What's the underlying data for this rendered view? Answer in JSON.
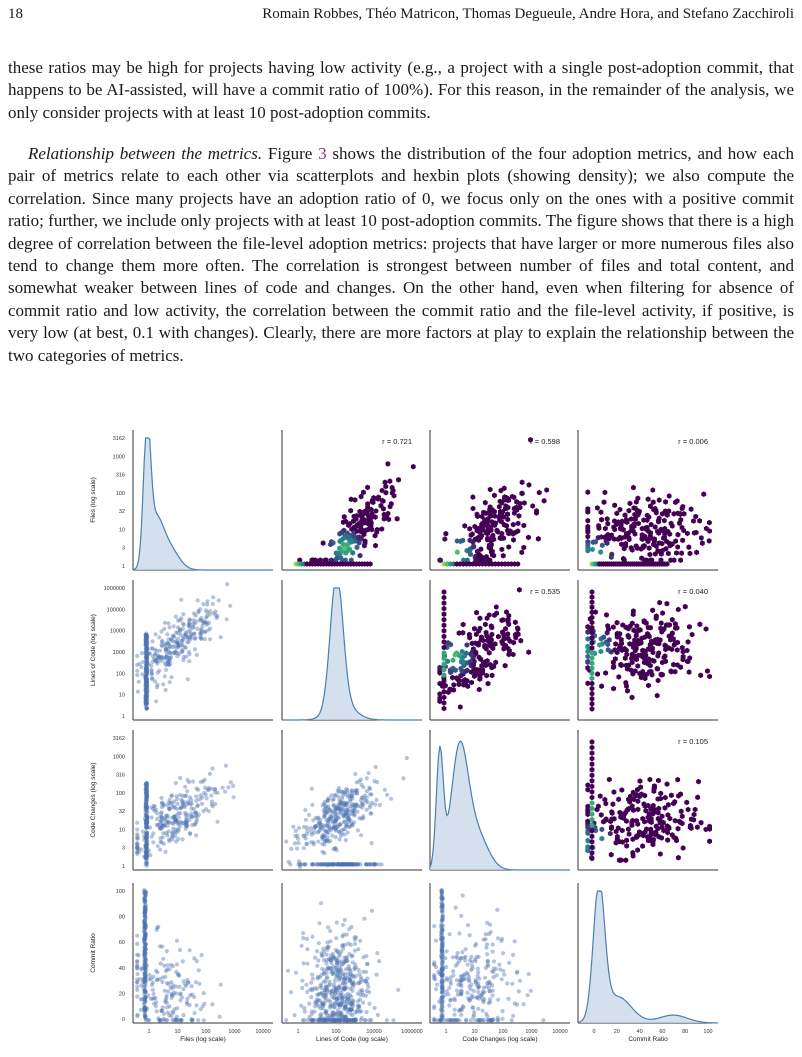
{
  "header": {
    "page_number": "18",
    "authors": "Romain Robbes, Théo Matricon, Thomas Degueule, Andre Hora, and Stefano Zacchiroli"
  },
  "paragraphs": {
    "p1": "these ratios may be high for projects having low activity (e.g., a project with a single post-adoption commit, that happens to be AI-assisted, will have a commit ratio of 100%). For this reason, in the remainder of the analysis, we only consider projects with at least 10 post-adoption commits.",
    "p2_title": "Relationship between the metrics.",
    "p2_a": " Figure ",
    "p2_ref": "3",
    "p2_b": " shows the distribution of the four adoption metrics, and how each pair of metrics relate to each other via scatterplots and hexbin plots (showing density); we also compute the correlation. Since many projects have an adoption ratio of 0, we focus only on the ones with a positive commit ratio; further, we include only projects with at least 10 post-adoption commits. The figure shows that there is a high degree of correlation between the file-level adoption metrics: projects that have larger or more numerous files also tend to change them more often. The correlation is strongest between number of files and total content, and somewhat weaker between lines of code and changes. On the other hand, even when filtering for absence of commit ratio and low activity, the correlation between the commit ratio and the file-level activity, if positive, is very low (at best, 0.1 with changes). Clearly, there are more factors at play to explain the relationship between the two categories of metrics."
  },
  "colors": {
    "scatter": "#4c72b0",
    "kde_line": "#4a7fb0",
    "kde_fill": "#c5d6e8",
    "hex_low": "#440154",
    "hex_high": "#fde725"
  },
  "chart_data": {
    "type": "pairplot",
    "variables": [
      "Files (log scale)",
      "Lines of Code (log scale)",
      "Code Changes (log scale)",
      "Commit Ratio"
    ],
    "row_labels": [
      "Files (log scale)",
      "Lines of Code (log scale)",
      "Code Changes (log scale)",
      "Commit Ratio"
    ],
    "x_labels": [
      "Files (log scale)",
      "Lines of Code (log scale)",
      "Code Changes (log scale)",
      "Commit Ratio"
    ],
    "y_ticks": [
      [
        "3162",
        "1000",
        "316",
        "100",
        "32",
        "10",
        "3",
        "1"
      ],
      [
        "1000000",
        "100000",
        "10000",
        "1000",
        "100",
        "10",
        "1"
      ],
      [
        "3162",
        "1000",
        "316",
        "100",
        "32",
        "10",
        "3",
        "1"
      ],
      [
        "100",
        "80",
        "60",
        "40",
        "20",
        "0"
      ]
    ],
    "x_ticks": [
      [
        "1",
        "10",
        "100",
        "1000",
        "10000"
      ],
      [
        "1",
        "100",
        "10000",
        "1000000"
      ],
      [
        "1",
        "10",
        "100",
        "1000",
        "10000"
      ],
      [
        "0",
        "20",
        "40",
        "60",
        "80",
        "100"
      ]
    ],
    "correlations": [
      {
        "row": 0,
        "col": 1,
        "label": "r = 0.721",
        "value": 0.721
      },
      {
        "row": 0,
        "col": 2,
        "label": "r = 0.598",
        "value": 0.598
      },
      {
        "row": 0,
        "col": 3,
        "label": "r = 0.006",
        "value": 0.006
      },
      {
        "row": 1,
        "col": 2,
        "label": "r = 0.535",
        "value": 0.535
      },
      {
        "row": 1,
        "col": 3,
        "label": "r = 0.040",
        "value": 0.04
      },
      {
        "row": 2,
        "col": 3,
        "label": "r = 0.105",
        "value": 0.105
      }
    ],
    "diagonal": "kde",
    "lower": "scatter",
    "upper": "hexbin"
  }
}
